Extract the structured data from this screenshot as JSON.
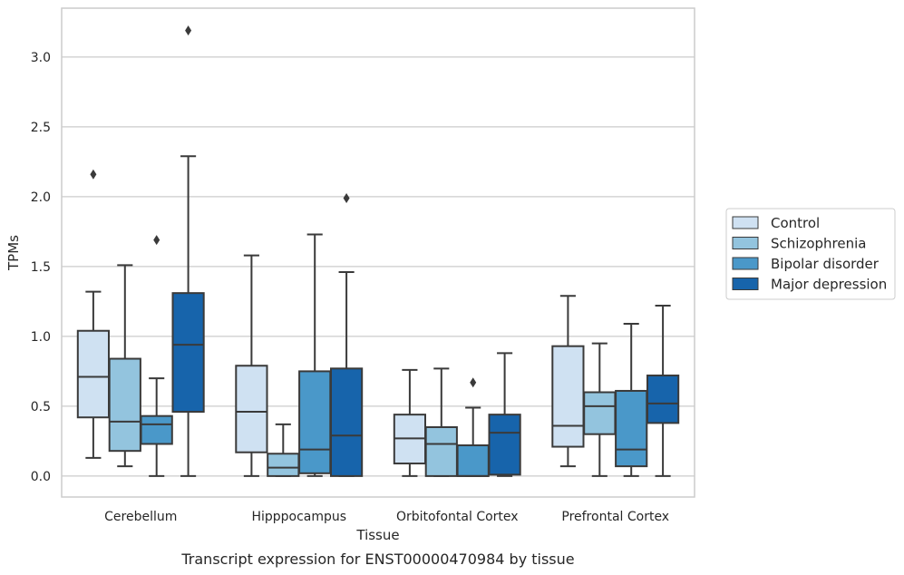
{
  "chart_data": {
    "type": "box",
    "caption": "Transcript expression for ENST00000470984 by tissue",
    "xlabel": "Tissue",
    "ylabel": "TPMs",
    "ylim": [
      -0.15,
      3.35
    ],
    "yticks": [
      0.0,
      0.5,
      1.0,
      1.5,
      2.0,
      2.5,
      3.0
    ],
    "ytick_labels": [
      "0.0",
      "0.5",
      "1.0",
      "1.5",
      "2.0",
      "2.5",
      "3.0"
    ],
    "grid": "horizontal",
    "legend_position": "right",
    "categories": [
      "Cerebellum",
      "Hipppocampus",
      "Orbitofontal Cortex",
      "Prefrontal Cortex"
    ],
    "series": [
      {
        "name": "Control",
        "color": "#cfe1f2",
        "boxes": [
          {
            "whislo": 0.13,
            "q1": 0.42,
            "med": 0.71,
            "q3": 1.04,
            "whishi": 1.32,
            "fliers": [
              2.16
            ]
          },
          {
            "whislo": 0.0,
            "q1": 0.17,
            "med": 0.46,
            "q3": 0.79,
            "whishi": 1.58,
            "fliers": []
          },
          {
            "whislo": 0.0,
            "q1": 0.09,
            "med": 0.27,
            "q3": 0.44,
            "whishi": 0.76,
            "fliers": []
          },
          {
            "whislo": 0.07,
            "q1": 0.21,
            "med": 0.36,
            "q3": 0.93,
            "whishi": 1.29,
            "fliers": []
          }
        ]
      },
      {
        "name": "Schizophrenia",
        "color": "#93c4de",
        "boxes": [
          {
            "whislo": 0.07,
            "q1": 0.18,
            "med": 0.39,
            "q3": 0.84,
            "whishi": 1.51,
            "fliers": []
          },
          {
            "whislo": 0.0,
            "q1": 0.0,
            "med": 0.06,
            "q3": 0.16,
            "whishi": 0.37,
            "fliers": []
          },
          {
            "whislo": 0.0,
            "q1": 0.0,
            "med": 0.23,
            "q3": 0.35,
            "whishi": 0.77,
            "fliers": []
          },
          {
            "whislo": 0.0,
            "q1": 0.3,
            "med": 0.5,
            "q3": 0.6,
            "whishi": 0.95,
            "fliers": []
          }
        ]
      },
      {
        "name": "Bipolar disorder",
        "color": "#4a98c9",
        "boxes": [
          {
            "whislo": 0.0,
            "q1": 0.23,
            "med": 0.37,
            "q3": 0.43,
            "whishi": 0.7,
            "fliers": [
              1.69
            ]
          },
          {
            "whislo": 0.0,
            "q1": 0.02,
            "med": 0.19,
            "q3": 0.75,
            "whishi": 1.73,
            "fliers": []
          },
          {
            "whislo": 0.0,
            "q1": 0.0,
            "med": 0.0,
            "q3": 0.22,
            "whishi": 0.49,
            "fliers": [
              0.67
            ]
          },
          {
            "whislo": 0.0,
            "q1": 0.07,
            "med": 0.19,
            "q3": 0.61,
            "whishi": 1.09,
            "fliers": []
          }
        ]
      },
      {
        "name": "Major depression",
        "color": "#1764ab",
        "boxes": [
          {
            "whislo": 0.0,
            "q1": 0.46,
            "med": 0.94,
            "q3": 1.31,
            "whishi": 2.29,
            "fliers": [
              3.19
            ]
          },
          {
            "whislo": 0.0,
            "q1": 0.0,
            "med": 0.29,
            "q3": 0.77,
            "whishi": 1.46,
            "fliers": [
              1.99
            ]
          },
          {
            "whislo": 0.0,
            "q1": 0.01,
            "med": 0.31,
            "q3": 0.44,
            "whishi": 0.88,
            "fliers": []
          },
          {
            "whislo": 0.0,
            "q1": 0.38,
            "med": 0.52,
            "q3": 0.72,
            "whishi": 1.22,
            "fliers": []
          }
        ]
      }
    ]
  },
  "colors": {
    "grid": "#cccccc",
    "frame": "#cccccc",
    "box_edge": "#3a3a3a",
    "text": "#262626"
  }
}
